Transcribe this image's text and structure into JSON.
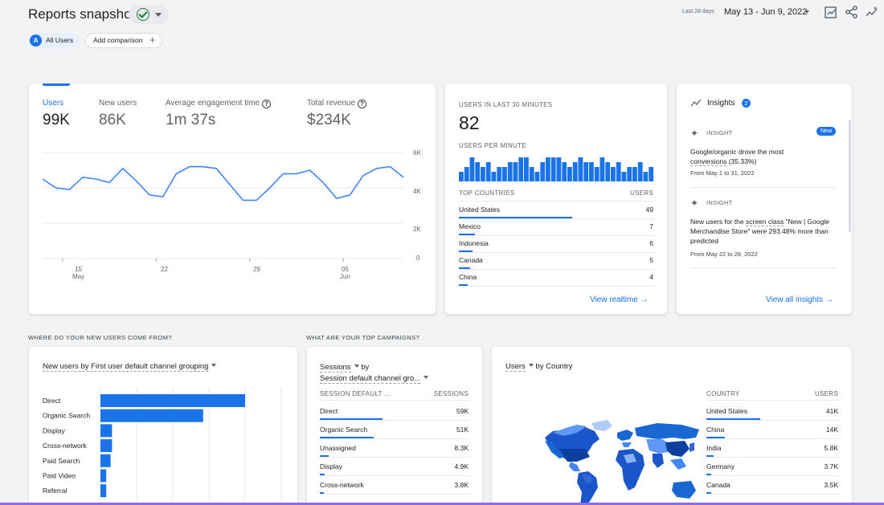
{
  "header": {
    "title": "Reports snapshot",
    "date_label": "Last 28 days",
    "date_range": "May 13 - Jun 9, 2022"
  },
  "comparison": {
    "segment_badge": "A",
    "segment": "All Users",
    "add_label": "Add comparison"
  },
  "overview": {
    "metrics": [
      {
        "label": "Users",
        "value": "99K"
      },
      {
        "label": "New users",
        "value": "86K"
      },
      {
        "label": "Average engagement time",
        "value": "1m 37s"
      },
      {
        "label": "Total revenue",
        "value": "$234K"
      }
    ],
    "y_ticks": [
      "6K",
      "4K",
      "2K",
      "0"
    ],
    "x_ticks": [
      {
        "day": "15",
        "month": "May"
      },
      {
        "day": "22",
        "month": ""
      },
      {
        "day": "29",
        "month": ""
      },
      {
        "day": "05",
        "month": "Jun"
      }
    ]
  },
  "chart_data": {
    "type": "line",
    "x": [
      "May 13",
      "May 14",
      "May 15",
      "May 16",
      "May 17",
      "May 18",
      "May 19",
      "May 20",
      "May 21",
      "May 22",
      "May 23",
      "May 24",
      "May 25",
      "May 26",
      "May 27",
      "May 28",
      "May 29",
      "May 30",
      "May 31",
      "Jun 1",
      "Jun 2",
      "Jun 3",
      "Jun 4",
      "Jun 5",
      "Jun 6",
      "Jun 7",
      "Jun 8",
      "Jun 9"
    ],
    "series": [
      {
        "name": "",
        "values": [
          4.5,
          4.0,
          3.9,
          4.6,
          4.5,
          4.3,
          5.1,
          4.4,
          3.6,
          3.5,
          4.8,
          5.2,
          5.2,
          5.1,
          4.2,
          3.3,
          3.3,
          4.0,
          4.8,
          4.8,
          5.0,
          4.3,
          3.4,
          3.6,
          4.7,
          5.1,
          5.2,
          4.6
        ]
      }
    ],
    "ylim": [
      0,
      6
    ],
    "y_ticks": [
      "6K",
      "4K",
      "2K",
      "0"
    ],
    "unit": "K",
    "grid": true,
    "color": "#4285f4"
  },
  "realtime": {
    "title": "USERS IN LAST 30 MINUTES",
    "value": "82",
    "per_minute_label": "USERS PER MINUTE",
    "per_minute": [
      2,
      3,
      5,
      4,
      3,
      4,
      2,
      3,
      3,
      4,
      4,
      5,
      5,
      3,
      2,
      4,
      5,
      5,
      5,
      4,
      3,
      4,
      5,
      4,
      4,
      3,
      5,
      4,
      3,
      4,
      2,
      3,
      3,
      4,
      2,
      3
    ],
    "countries_header": "TOP COUNTRIES",
    "users_header": "USERS",
    "countries": [
      {
        "name": "United States",
        "value": "49",
        "share": 1.0
      },
      {
        "name": "Mexico",
        "value": "7",
        "share": 0.14
      },
      {
        "name": "Indonesia",
        "value": "6",
        "share": 0.12
      },
      {
        "name": "Canada",
        "value": "5",
        "share": 0.1
      },
      {
        "name": "China",
        "value": "4",
        "share": 0.08
      }
    ],
    "link": "View realtime"
  },
  "insights": {
    "title": "Insights",
    "count": "2",
    "items": [
      {
        "tag": "INSIGHT",
        "badge": "New",
        "text_parts": [
          "Google/organic drove the most ",
          "conversions",
          " (35.33%)"
        ],
        "date": "From May 1 to 31, 2022"
      },
      {
        "tag": "INSIGHT",
        "badge": "",
        "text_parts": [
          "New users for the ",
          "screen class",
          " \"New | Google Merchandise Store\" were 293.48% more than predicted"
        ],
        "date": "From May 22 to 28, 2022"
      }
    ],
    "link": "View all insights"
  },
  "sections": {
    "new_users": "WHERE DO YOUR NEW USERS COME FROM?",
    "campaigns": "WHAT ARE YOUR TOP CAMPAIGNS?"
  },
  "channels": {
    "dropdown": "New users by First user default channel grouping",
    "rows": [
      {
        "name": "Direct",
        "share": 1.0
      },
      {
        "name": "Organic Search",
        "share": 0.71
      },
      {
        "name": "Display",
        "share": 0.08
      },
      {
        "name": "Cross-network",
        "share": 0.08
      },
      {
        "name": "Paid Search",
        "share": 0.07
      },
      {
        "name": "Paid Video",
        "share": 0.04
      },
      {
        "name": "Referral",
        "share": 0.04
      }
    ]
  },
  "sessions": {
    "metric": "Sessions",
    "by": "by",
    "dimension": "Session default channel gro...",
    "col_left": "SESSION DEFAULT ...",
    "col_right": "SESSIONS",
    "rows": [
      {
        "name": "Direct",
        "value": "59K",
        "share": 1.0
      },
      {
        "name": "Organic Search",
        "value": "51K",
        "share": 0.86
      },
      {
        "name": "Unassigned",
        "value": "8.3K",
        "share": 0.14
      },
      {
        "name": "Display",
        "value": "4.9K",
        "share": 0.08
      },
      {
        "name": "Cross-network",
        "value": "3.8K",
        "share": 0.06
      }
    ]
  },
  "country": {
    "metric": "Users",
    "by": "by Country",
    "col_left": "COUNTRY",
    "col_right": "USERS",
    "rows": [
      {
        "name": "United States",
        "value": "41K",
        "share": 1.0
      },
      {
        "name": "China",
        "value": "14K",
        "share": 0.34
      },
      {
        "name": "India",
        "value": "5.8K",
        "share": 0.14
      },
      {
        "name": "Germany",
        "value": "3.7K",
        "share": 0.09
      },
      {
        "name": "Canada",
        "value": "3.5K",
        "share": 0.085
      }
    ]
  }
}
